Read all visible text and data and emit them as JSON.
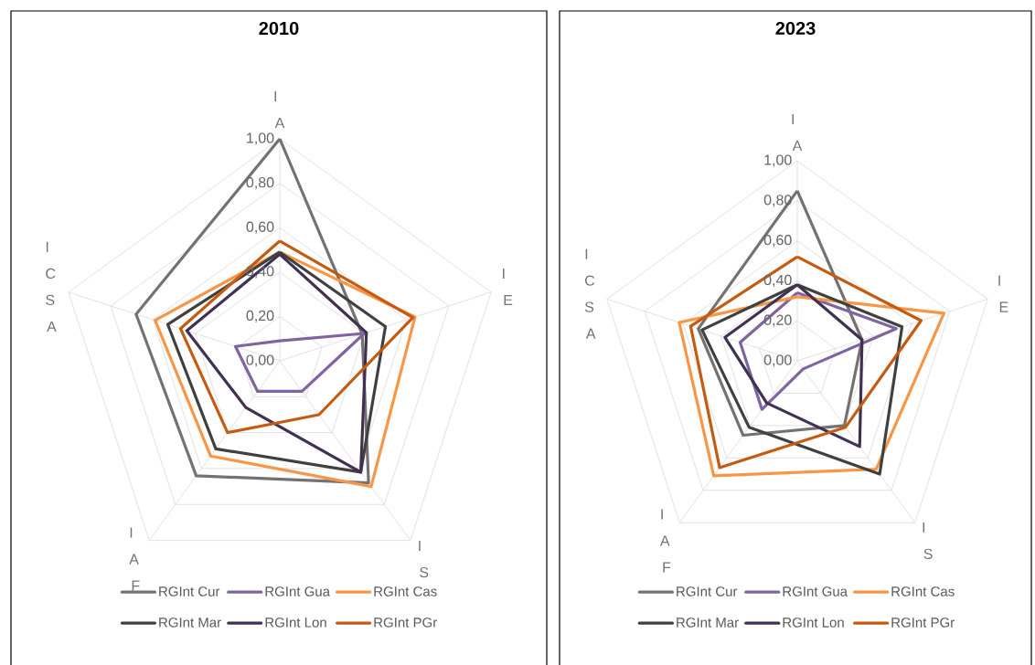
{
  "chart_data": [
    {
      "type": "radar",
      "title": "2010",
      "categories": [
        "IA",
        "IE",
        "IS",
        "IAF",
        "ICSA"
      ],
      "ylim": [
        0,
        1
      ],
      "yticks": [
        {
          "value": 0,
          "label": "0,00"
        },
        {
          "value": 0.2,
          "label": "0,20"
        },
        {
          "value": 0.4,
          "label": "0,40"
        },
        {
          "value": 0.6,
          "label": "0,60"
        },
        {
          "value": 0.8,
          "label": "0,80"
        },
        {
          "value": 1,
          "label": "1,00"
        }
      ],
      "grid": true,
      "legend": "bottom",
      "series": [
        {
          "name": "RGInt Cur",
          "color": "#767171",
          "values": [
            1.0,
            0.39,
            0.68,
            0.64,
            0.68
          ]
        },
        {
          "name": "RGInt Gua",
          "color": "#8064a2",
          "values": [
            0.09,
            0.4,
            0.17,
            0.17,
            0.21
          ]
        },
        {
          "name": "RGInt Cas",
          "color": "#f79646",
          "values": [
            0.49,
            0.64,
            0.7,
            0.53,
            0.59
          ]
        },
        {
          "name": "RGInt Mar",
          "color": "#404040",
          "values": [
            0.49,
            0.5,
            0.62,
            0.49,
            0.53
          ]
        },
        {
          "name": "RGInt Lon",
          "color": "#403152",
          "values": [
            0.48,
            0.41,
            0.62,
            0.26,
            0.44
          ]
        },
        {
          "name": "RGInt PGr",
          "color": "#c55a11",
          "values": [
            0.54,
            0.63,
            0.3,
            0.4,
            0.47
          ]
        }
      ]
    },
    {
      "type": "radar",
      "title": "2023",
      "categories": [
        "IA",
        "IE",
        "IS",
        "IAF",
        "ICSA"
      ],
      "ylim": [
        0,
        1
      ],
      "yticks": [
        {
          "value": 0,
          "label": "0,00"
        },
        {
          "value": 0.2,
          "label": "0,20"
        },
        {
          "value": 0.4,
          "label": "0,40"
        },
        {
          "value": 0.6,
          "label": "0,60"
        },
        {
          "value": 0.8,
          "label": "0,80"
        },
        {
          "value": 1,
          "label": "1,00"
        }
      ],
      "grid": true,
      "legend": "bottom",
      "series": [
        {
          "name": "RGInt Cur",
          "color": "#767171",
          "values": [
            0.85,
            0.34,
            0.4,
            0.46,
            0.52
          ]
        },
        {
          "name": "RGInt Gua",
          "color": "#8064a2",
          "values": [
            0.34,
            0.52,
            0.05,
            0.3,
            0.3
          ]
        },
        {
          "name": "RGInt Cas",
          "color": "#f79646",
          "values": [
            0.32,
            0.77,
            0.67,
            0.71,
            0.62
          ]
        },
        {
          "name": "RGInt Mar",
          "color": "#404040",
          "values": [
            0.38,
            0.55,
            0.7,
            0.41,
            0.5
          ]
        },
        {
          "name": "RGInt Lon",
          "color": "#403152",
          "values": [
            0.38,
            0.34,
            0.53,
            0.26,
            0.38
          ]
        },
        {
          "name": "RGInt PGr",
          "color": "#c55a11",
          "values": [
            0.52,
            0.65,
            0.41,
            0.66,
            0.56
          ]
        }
      ]
    }
  ]
}
